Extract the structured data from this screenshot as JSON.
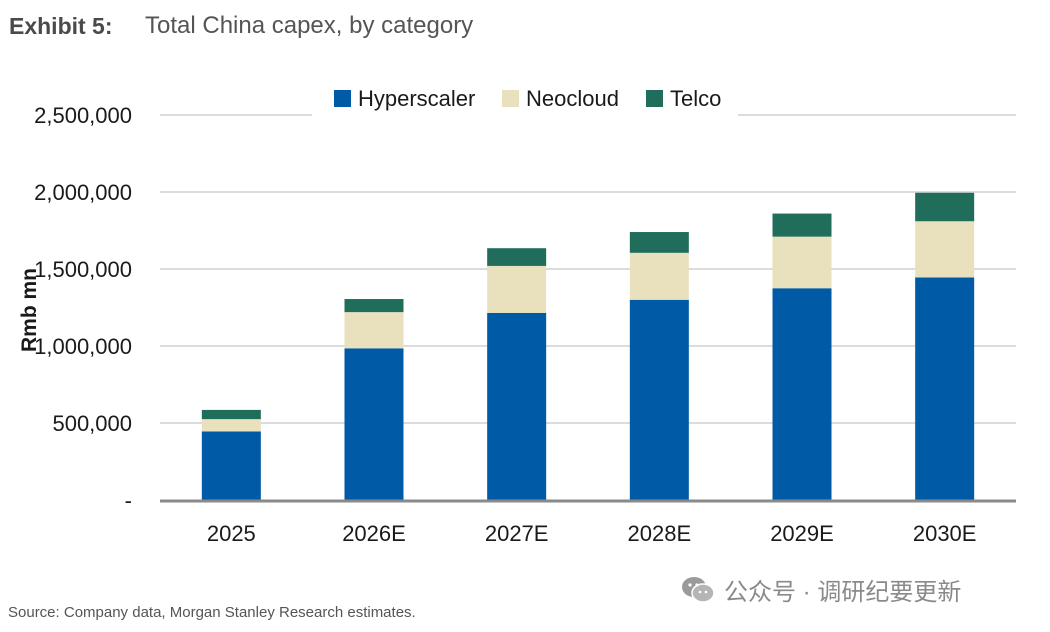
{
  "header": {
    "exhibit": "Exhibit 5:",
    "title": "Total China capex, by category"
  },
  "footer": {
    "source": "Source: Company data, Morgan Stanley Research estimates.",
    "watermark": "公众号 · 调研纪要更新",
    "watermark_icon": "wechat-icon"
  },
  "chart_data": {
    "type": "bar",
    "stacked": true,
    "title": "Total China capex, by category",
    "xlabel": "",
    "ylabel": "Rmb mn",
    "categories": [
      "2025",
      "2026E",
      "2027E",
      "2028E",
      "2029E",
      "2030E"
    ],
    "series": [
      {
        "name": "Hyperscaler",
        "color": "#005aa6",
        "values": [
          445000,
          985000,
          1215000,
          1300000,
          1375000,
          1445000
        ]
      },
      {
        "name": "Neocloud",
        "color": "#e9e0bd",
        "values": [
          80000,
          235000,
          305000,
          305000,
          335000,
          365000
        ]
      },
      {
        "name": "Telco",
        "color": "#206d5b",
        "values": [
          60000,
          85000,
          115000,
          135000,
          150000,
          185000
        ]
      }
    ],
    "ylim": [
      0,
      2500000
    ],
    "yticks": [
      0,
      500000,
      1000000,
      1500000,
      2000000,
      2500000
    ],
    "ytick_labels": [
      "-",
      "500,000",
      "1,000,000",
      "1,500,000",
      "2,000,000",
      "2,500,000"
    ],
    "grid": true,
    "legend_position": "top-center"
  }
}
